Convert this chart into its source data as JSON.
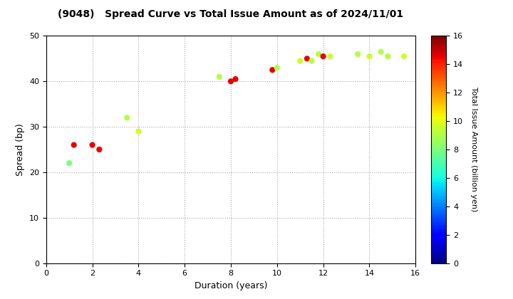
{
  "title": "(9048)   Spread Curve vs Total Issue Amount as of 2024/11/01",
  "xlabel": "Duration (years)",
  "ylabel": "Spread (bp)",
  "colorbar_label": "Total Issue Amount (billion yen)",
  "xlim": [
    0,
    16
  ],
  "ylim": [
    0,
    50
  ],
  "xticks": [
    0,
    2,
    4,
    6,
    8,
    10,
    12,
    14,
    16
  ],
  "yticks": [
    0,
    10,
    20,
    30,
    40,
    50
  ],
  "colorbar_ticks": [
    0,
    2,
    4,
    6,
    8,
    10,
    12,
    14,
    16
  ],
  "color_max": 16,
  "points": [
    {
      "duration": 1.0,
      "spread": 22.0,
      "amount": 8.0
    },
    {
      "duration": 1.2,
      "spread": 26.0,
      "amount": 14.5
    },
    {
      "duration": 2.0,
      "spread": 26.0,
      "amount": 14.5
    },
    {
      "duration": 2.3,
      "spread": 25.0,
      "amount": 14.5
    },
    {
      "duration": 3.5,
      "spread": 32.0,
      "amount": 9.0
    },
    {
      "duration": 4.0,
      "spread": 29.0,
      "amount": 9.5
    },
    {
      "duration": 7.5,
      "spread": 41.0,
      "amount": 9.0
    },
    {
      "duration": 8.0,
      "spread": 40.0,
      "amount": 14.5
    },
    {
      "duration": 8.2,
      "spread": 40.5,
      "amount": 14.5
    },
    {
      "duration": 9.8,
      "spread": 42.5,
      "amount": 14.5
    },
    {
      "duration": 10.0,
      "spread": 43.0,
      "amount": 9.0
    },
    {
      "duration": 11.0,
      "spread": 44.5,
      "amount": 9.5
    },
    {
      "duration": 11.3,
      "spread": 45.0,
      "amount": 14.5
    },
    {
      "duration": 11.5,
      "spread": 44.5,
      "amount": 9.0
    },
    {
      "duration": 11.8,
      "spread": 46.0,
      "amount": 9.0
    },
    {
      "duration": 12.0,
      "spread": 45.5,
      "amount": 14.5
    },
    {
      "duration": 12.3,
      "spread": 45.5,
      "amount": 9.5
    },
    {
      "duration": 13.5,
      "spread": 46.0,
      "amount": 9.0
    },
    {
      "duration": 14.0,
      "spread": 45.5,
      "amount": 9.5
    },
    {
      "duration": 14.5,
      "spread": 46.5,
      "amount": 9.0
    },
    {
      "duration": 14.8,
      "spread": 45.5,
      "amount": 9.0
    },
    {
      "duration": 15.5,
      "spread": 45.5,
      "amount": 9.5
    }
  ],
  "background_color": "#ffffff",
  "grid_color": "#aaaaaa",
  "marker_size": 35,
  "fig_width": 7.2,
  "fig_height": 4.2,
  "dpi": 100
}
